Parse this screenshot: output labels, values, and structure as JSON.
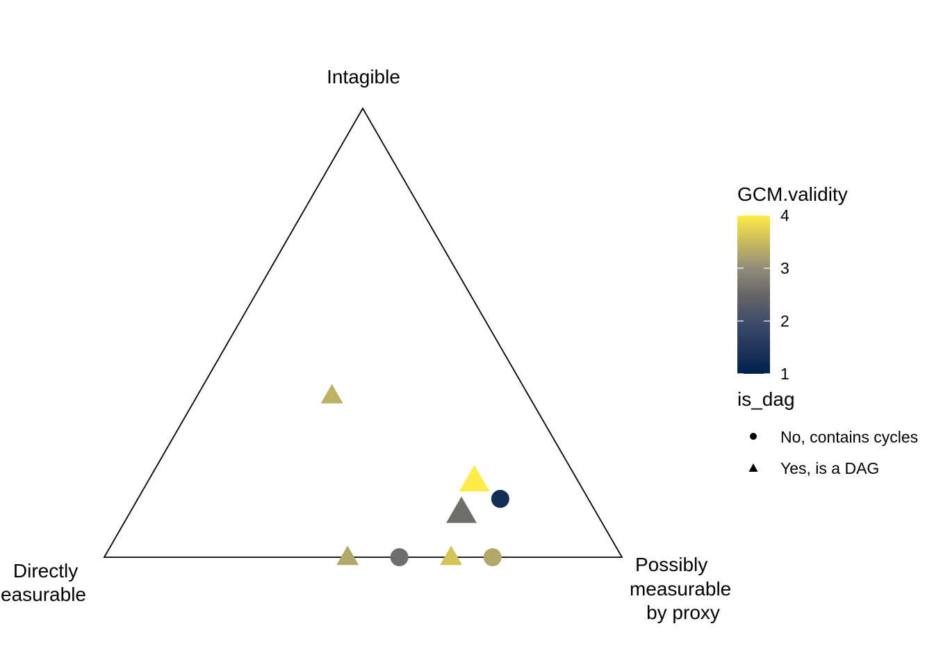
{
  "chart_data": {
    "type": "scatter",
    "subtype": "ternary",
    "vertices": {
      "top": "Intagible",
      "left": [
        "Directly",
        "measurable"
      ],
      "right": [
        "Possibly",
        "measurable",
        "by proxy"
      ]
    },
    "points": [
      {
        "top": 0.36,
        "left": 0.38,
        "right": 0.26,
        "gcm_validity": 3.4,
        "is_dag": "Yes, is a DAG",
        "size": "small"
      },
      {
        "top": 0.17,
        "left": 0.2,
        "right": 0.63,
        "gcm_validity": 4.0,
        "is_dag": "Yes, is a DAG",
        "size": "large"
      },
      {
        "top": 0.13,
        "left": 0.17,
        "right": 0.7,
        "gcm_validity": 1.3,
        "is_dag": "No, contains cycles",
        "size": "small"
      },
      {
        "top": 0.1,
        "left": 0.26,
        "right": 0.64,
        "gcm_validity": 2.6,
        "is_dag": "Yes, is a DAG",
        "size": "large"
      },
      {
        "top": 0.0,
        "left": 0.53,
        "right": 0.47,
        "gcm_validity": 3.3,
        "is_dag": "Yes, is a DAG",
        "size": "small"
      },
      {
        "top": 0.0,
        "left": 0.43,
        "right": 0.57,
        "gcm_validity": 2.6,
        "is_dag": "No, contains cycles",
        "size": "small"
      },
      {
        "top": 0.0,
        "left": 0.33,
        "right": 0.67,
        "gcm_validity": 3.6,
        "is_dag": "Yes, is a DAG",
        "size": "small"
      },
      {
        "top": 0.0,
        "left": 0.25,
        "right": 0.75,
        "gcm_validity": 3.3,
        "is_dag": "No, contains cycles",
        "size": "small"
      }
    ],
    "color_scale": {
      "title": "GCM.validity",
      "domain": [
        1,
        4
      ],
      "ticks": [
        "1",
        "2",
        "3",
        "4"
      ],
      "stops": [
        {
          "value": 1.0,
          "color": "#00204D"
        },
        {
          "value": 2.0,
          "color": "#414D6B"
        },
        {
          "value": 2.5,
          "color": "#666666"
        },
        {
          "value": 3.0,
          "color": "#918C78"
        },
        {
          "value": 4.0,
          "color": "#FFEA46"
        }
      ]
    },
    "shape_legend": {
      "title": "is_dag",
      "items": [
        {
          "label": "No, contains cycles",
          "shape": "circle"
        },
        {
          "label": "Yes, is a DAG",
          "shape": "triangle"
        }
      ]
    },
    "grid": false
  }
}
